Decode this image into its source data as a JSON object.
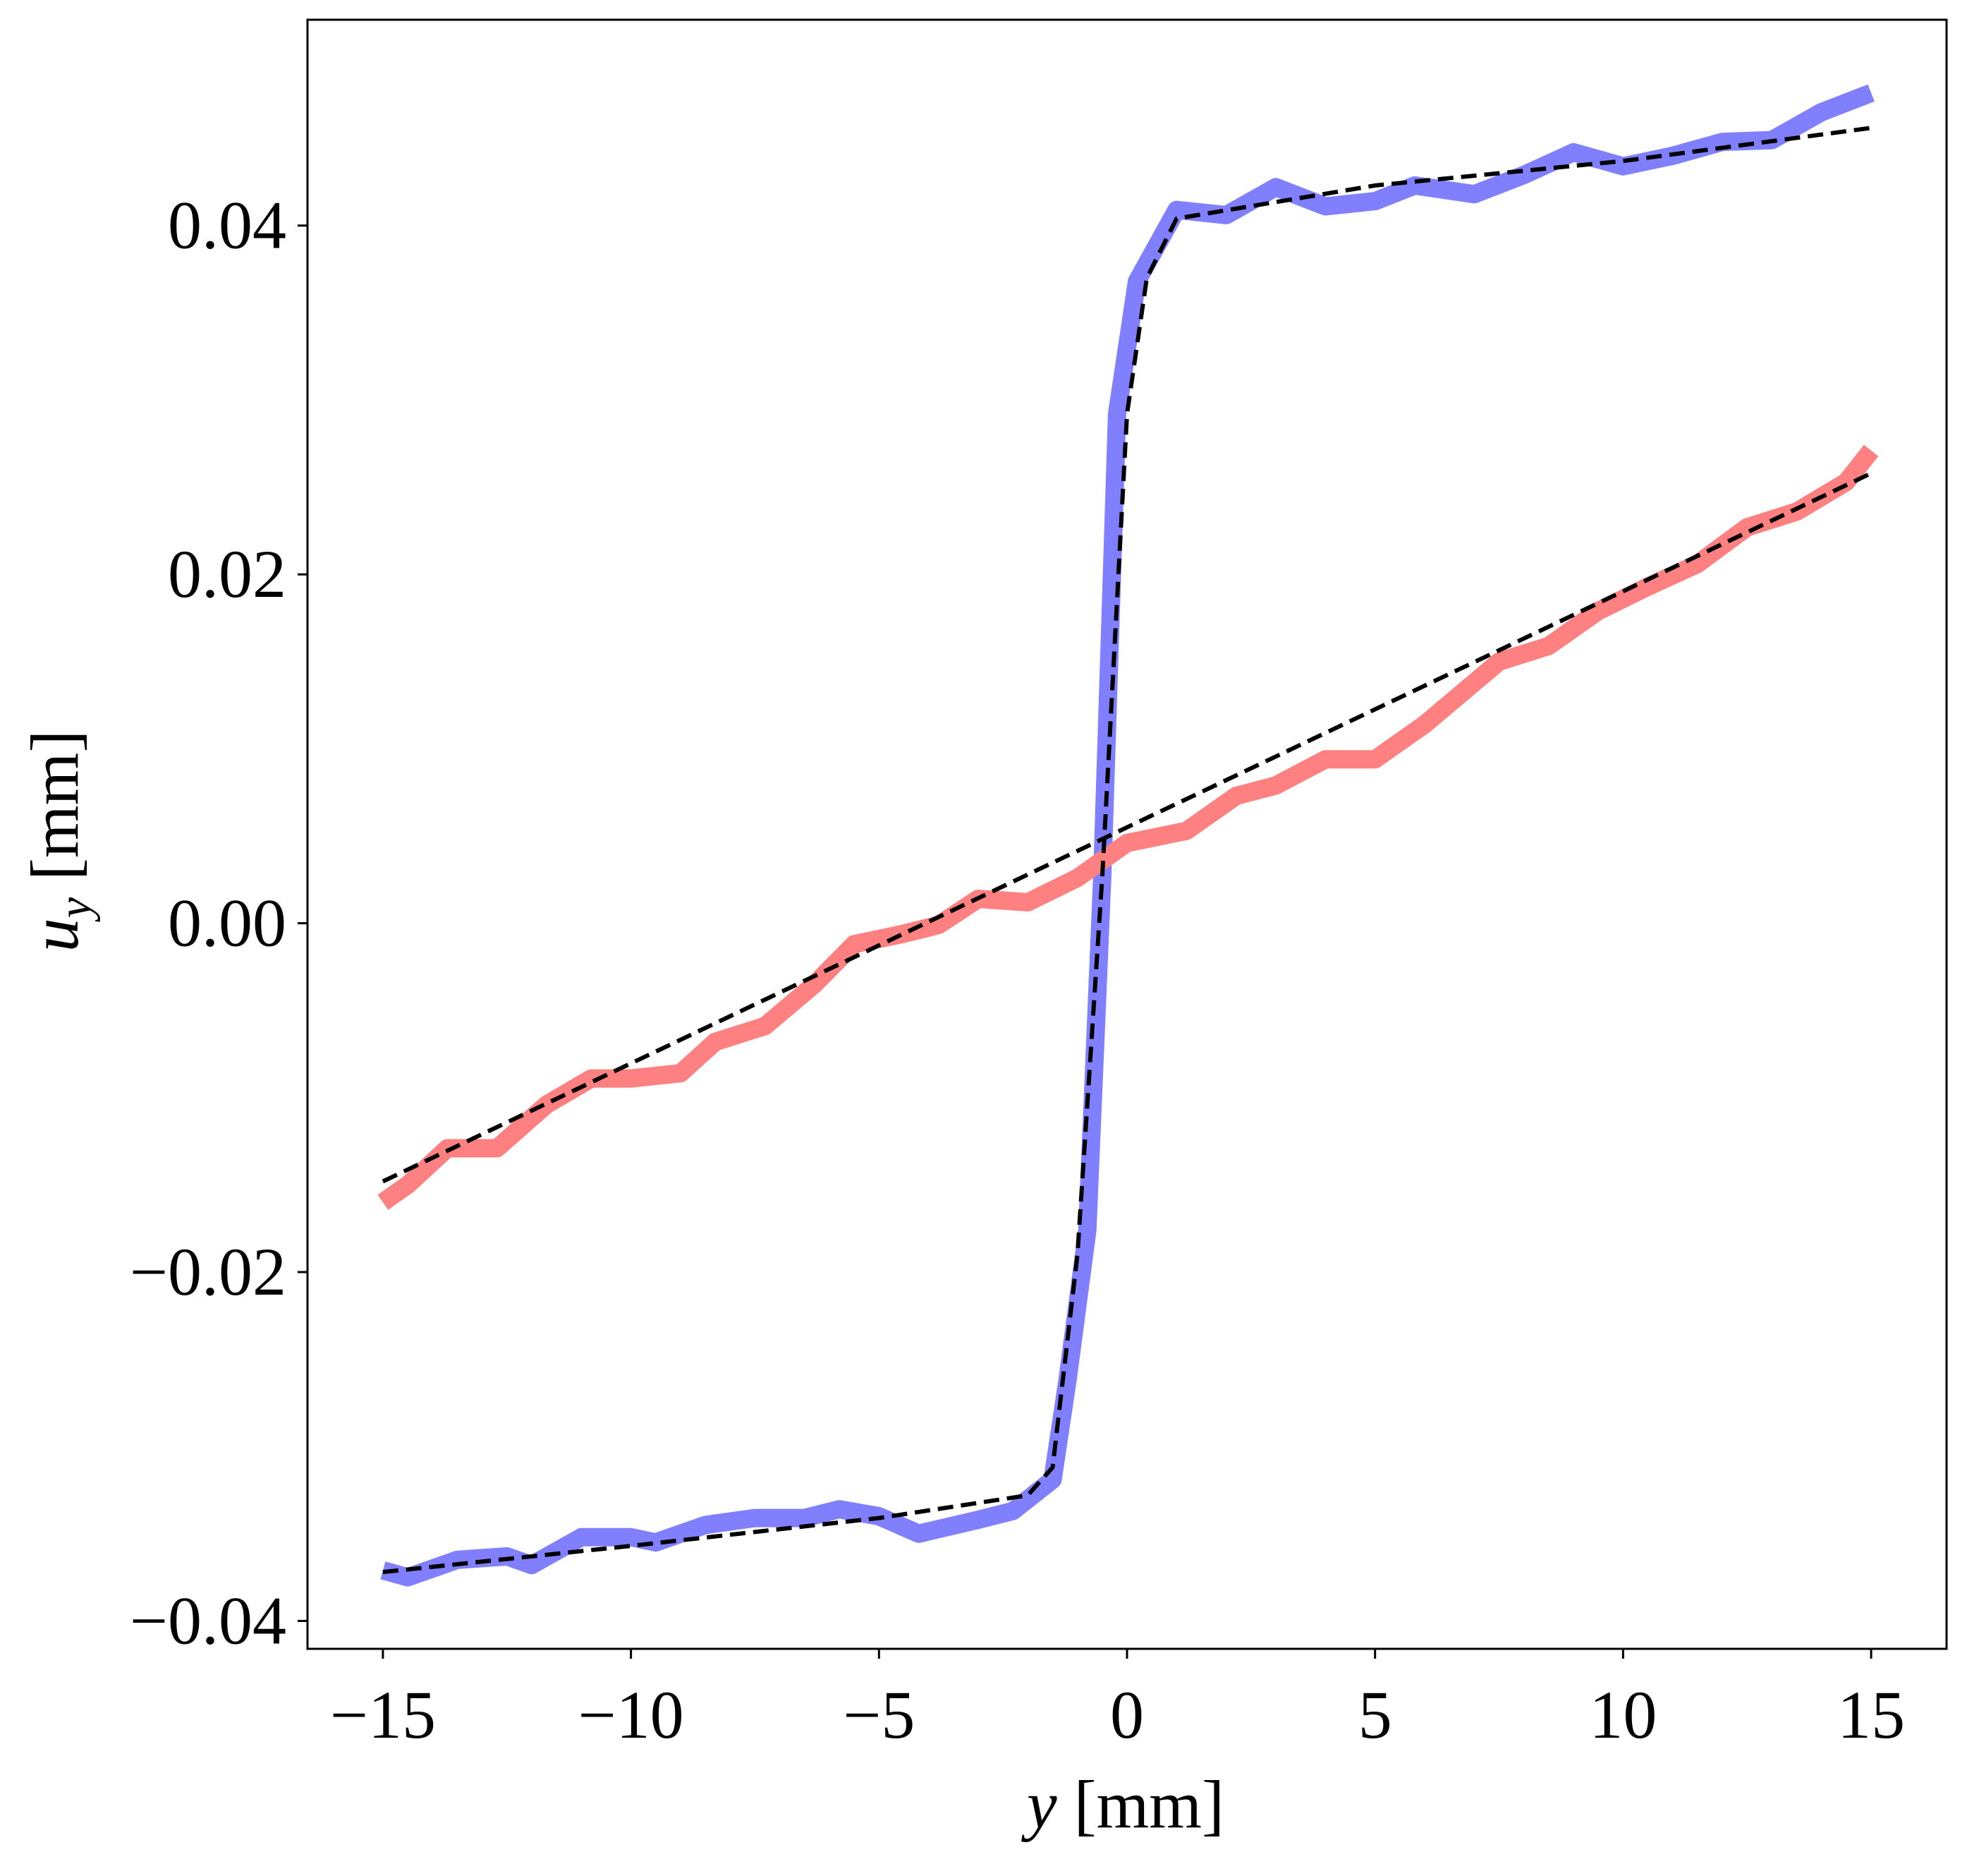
{
  "chart_data": {
    "type": "line",
    "xlabel_symbol": "y",
    "xlabel_unit": " [mm]",
    "ylabel_symbol": "u",
    "ylabel_subscript": "y",
    "ylabel_unit": " [mm]",
    "xlim": [
      -16.52,
      16.52
    ],
    "ylim": [
      -0.0416,
      0.0518
    ],
    "xticks": [
      {
        "value": -15,
        "label": "−15"
      },
      {
        "value": -10,
        "label": "−10"
      },
      {
        "value": -5,
        "label": "−5"
      },
      0,
      5,
      10,
      15
    ],
    "yticks": [
      {
        "value": -0.04,
        "label": "−0.04"
      },
      {
        "value": -0.02,
        "label": "−0.02"
      },
      {
        "value": 0,
        "label": "0.00"
      },
      0.02,
      0.04
    ],
    "grid": false,
    "series": [
      {
        "color": "#8080ff",
        "style": "thick",
        "x": [
          -15,
          -14.5,
          -13.5,
          -12.5,
          -12,
          -11,
          -10,
          -9.5,
          -8.5,
          -7.5,
          -6.5,
          -5.8,
          -5,
          -4.2,
          -3,
          -2.3,
          -1.5,
          -1.2,
          -0.8,
          -0.5,
          -0.2,
          0.2,
          1,
          2,
          3,
          4,
          5,
          5.8,
          7,
          8,
          9,
          10,
          11,
          12,
          13,
          14,
          15
        ],
        "values": [
          -0.0371,
          -0.0375,
          -0.0365,
          -0.0363,
          -0.0368,
          -0.0352,
          -0.0352,
          -0.0355,
          -0.0345,
          -0.0341,
          -0.0341,
          -0.0336,
          -0.034,
          -0.035,
          -0.0342,
          -0.0337,
          -0.0319,
          -0.0262,
          -0.0176,
          0.0026,
          0.0292,
          0.0368,
          0.0409,
          0.0406,
          0.0422,
          0.0411,
          0.0414,
          0.0423,
          0.0418,
          0.0429,
          0.0442,
          0.0434,
          0.044,
          0.0448,
          0.0449,
          0.0465,
          0.0476
        ]
      },
      {
        "color": "#ff8080",
        "style": "thick",
        "x": [
          -15,
          -14.5,
          -13.7,
          -12.7,
          -11.7,
          -10.8,
          -10,
          -9,
          -8.3,
          -7.3,
          -6.3,
          -5.5,
          -4.5,
          -3.8,
          -3,
          -2,
          -1,
          0,
          1.2,
          2.2,
          3,
          4,
          5,
          6,
          7.5,
          8.5,
          9.5,
          10.5,
          11.5,
          12.5,
          13.5,
          14.5,
          15
        ],
        "values": [
          -0.016,
          -0.015,
          -0.0129,
          -0.0129,
          -0.0104,
          -0.0089,
          -0.0089,
          -0.0086,
          -0.0068,
          -0.0059,
          -0.0035,
          -0.0012,
          -0.0006,
          -0.0001,
          0.0014,
          0.0012,
          0.0026,
          0.0046,
          0.0053,
          0.0073,
          0.0079,
          0.0094,
          0.0094,
          0.0114,
          0.015,
          0.0159,
          0.0179,
          0.0193,
          0.0206,
          0.0227,
          0.0236,
          0.0253,
          0.0271
        ]
      },
      {
        "color": "#000000",
        "style": "dashed",
        "x": [
          -15,
          -10,
          -5,
          -2,
          -1.5,
          -1,
          -0.5,
          0,
          0.4,
          1,
          5,
          10,
          15
        ],
        "values": [
          -0.0372,
          -0.0357,
          -0.0341,
          -0.0328,
          -0.0312,
          -0.019,
          0.0026,
          0.0292,
          0.037,
          0.0404,
          0.0423,
          0.0437,
          0.0456
        ]
      },
      {
        "color": "#000000",
        "style": "dashed",
        "x": [
          -15,
          15
        ],
        "values": [
          -0.0148,
          0.0258
        ]
      }
    ]
  }
}
